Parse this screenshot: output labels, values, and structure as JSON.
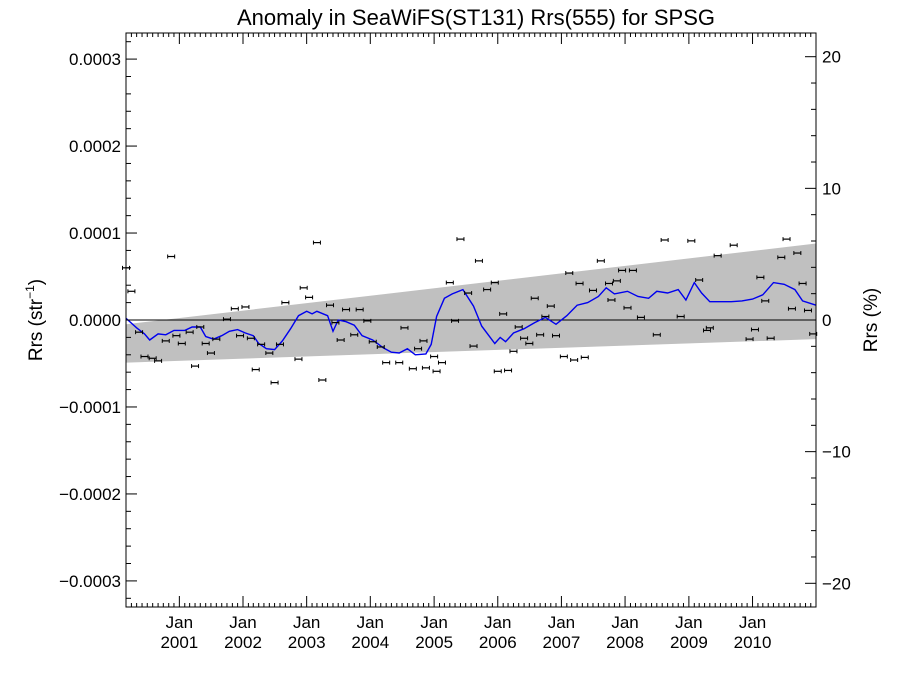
{
  "chart_data": {
    "type": "scatter",
    "title": "Anomaly in SeaWiFS(ST131) Rrs(555) for SPSG",
    "ylabel_left": {
      "text": "Rrs (str",
      "superscript": "−1",
      "suffix": ")"
    },
    "ylabel_right": "Rrs (%)",
    "xlabel": "",
    "xlim": [
      "2000-03-01",
      "2010-12-31"
    ],
    "ylim": [
      -0.00033,
      0.00033
    ],
    "y2lim": [
      -21.8,
      21.8
    ],
    "yticks": [
      {
        "value": 0.0003,
        "label": "0.0003"
      },
      {
        "value": 0.0002,
        "label": "0.0002"
      },
      {
        "value": 0.0001,
        "label": "0.0001"
      },
      {
        "value": 0.0,
        "label": "0.0000"
      },
      {
        "value": -0.0001,
        "label": "−0.0001"
      },
      {
        "value": -0.0002,
        "label": "−0.0002"
      },
      {
        "value": -0.0003,
        "label": "−0.0003"
      }
    ],
    "y2ticks": [
      {
        "value": 20,
        "label": "20"
      },
      {
        "value": 10,
        "label": "10"
      },
      {
        "value": 0,
        "label": "0"
      },
      {
        "value": -10,
        "label": "−10"
      },
      {
        "value": -20,
        "label": "−20"
      }
    ],
    "xticks": [
      {
        "date": "2001-01-01",
        "month": "Jan",
        "year": "2001"
      },
      {
        "date": "2002-01-01",
        "month": "Jan",
        "year": "2002"
      },
      {
        "date": "2003-01-01",
        "month": "Jan",
        "year": "2003"
      },
      {
        "date": "2004-01-01",
        "month": "Jan",
        "year": "2004"
      },
      {
        "date": "2005-01-01",
        "month": "Jan",
        "year": "2005"
      },
      {
        "date": "2006-01-01",
        "month": "Jan",
        "year": "2006"
      },
      {
        "date": "2007-01-01",
        "month": "Jan",
        "year": "2007"
      },
      {
        "date": "2008-01-01",
        "month": "Jan",
        "year": "2008"
      },
      {
        "date": "2009-01-01",
        "month": "Jan",
        "year": "2009"
      },
      {
        "date": "2010-01-01",
        "month": "Jan",
        "year": "2010"
      }
    ],
    "band": {
      "color": "#c0c0c0",
      "upper": [
        [
          "2000-03-01",
          -5e-06
        ],
        [
          "2010-12-31",
          8.8e-05
        ]
      ],
      "lower": [
        [
          "2000-03-01",
          -4.9e-05
        ],
        [
          "2010-12-31",
          -2.2e-05
        ]
      ]
    },
    "zero_line": 0,
    "smooth_line": {
      "color": "#0000ee",
      "points": [
        [
          "2000-03-01",
          2e-06
        ],
        [
          "2000-05-01",
          -9e-06
        ],
        [
          "2000-06-15",
          -1.6e-05
        ],
        [
          "2000-07-15",
          -2.3e-05
        ],
        [
          "2000-09-01",
          -1.6e-05
        ],
        [
          "2000-10-15",
          -1.7e-05
        ],
        [
          "2000-12-01",
          -1.2e-05
        ],
        [
          "2001-02-01",
          -1.2e-05
        ],
        [
          "2001-03-15",
          -8e-06
        ],
        [
          "2001-05-01",
          -8e-06
        ],
        [
          "2001-06-01",
          -1.9e-05
        ],
        [
          "2001-07-15",
          -2.2e-05
        ],
        [
          "2001-09-01",
          -1.8e-05
        ],
        [
          "2001-10-15",
          -1.3e-05
        ],
        [
          "2001-12-01",
          -1.1e-05
        ],
        [
          "2002-01-15",
          -1.5e-05
        ],
        [
          "2002-03-01",
          -1.8e-05
        ],
        [
          "2002-04-01",
          -2.7e-05
        ],
        [
          "2002-05-15",
          -3.3e-05
        ],
        [
          "2002-07-01",
          -3.4e-05
        ],
        [
          "2002-08-15",
          -2.4e-05
        ],
        [
          "2002-10-01",
          -1e-05
        ],
        [
          "2002-11-15",
          5e-06
        ],
        [
          "2003-01-01",
          1e-05
        ],
        [
          "2003-02-01",
          7e-06
        ],
        [
          "2003-03-01",
          1e-05
        ],
        [
          "2003-05-01",
          5e-06
        ],
        [
          "2003-06-01",
          -1.3e-05
        ],
        [
          "2003-07-01",
          0.0
        ],
        [
          "2003-08-15",
          -2e-06
        ],
        [
          "2003-10-01",
          -6e-06
        ],
        [
          "2003-11-15",
          -1.8e-05
        ],
        [
          "2004-01-15",
          -2.3e-05
        ],
        [
          "2004-03-15",
          -3.2e-05
        ],
        [
          "2004-05-01",
          -3.7e-05
        ],
        [
          "2004-06-15",
          -3.8e-05
        ],
        [
          "2004-08-01",
          -3.3e-05
        ],
        [
          "2004-09-15",
          -4e-05
        ],
        [
          "2004-11-15",
          -3.9e-05
        ],
        [
          "2004-12-15",
          -2.8e-05
        ],
        [
          "2005-01-15",
          4e-06
        ],
        [
          "2005-03-01",
          2.5e-05
        ],
        [
          "2005-04-15",
          3e-05
        ],
        [
          "2005-06-15",
          3.5e-05
        ],
        [
          "2005-08-15",
          1.6e-05
        ],
        [
          "2005-10-01",
          -7e-06
        ],
        [
          "2005-12-15",
          -2.7e-05
        ],
        [
          "2006-01-15",
          -2e-05
        ],
        [
          "2006-02-15",
          -2.5e-05
        ],
        [
          "2006-04-01",
          -1.5e-05
        ],
        [
          "2006-06-01",
          -1e-05
        ],
        [
          "2006-08-01",
          -3e-06
        ],
        [
          "2006-10-01",
          3e-06
        ],
        [
          "2006-12-01",
          -5e-06
        ],
        [
          "2007-02-01",
          5e-06
        ],
        [
          "2007-04-01",
          1.7e-05
        ],
        [
          "2007-06-01",
          2e-05
        ],
        [
          "2007-08-01",
          2.7e-05
        ],
        [
          "2007-09-15",
          3.7e-05
        ],
        [
          "2007-11-01",
          3e-05
        ],
        [
          "2008-01-15",
          3.3e-05
        ],
        [
          "2008-03-15",
          2.7e-05
        ],
        [
          "2008-05-15",
          2.5e-05
        ],
        [
          "2008-07-01",
          3.3e-05
        ],
        [
          "2008-09-01",
          3.1e-05
        ],
        [
          "2008-11-01",
          3.5e-05
        ],
        [
          "2008-12-15",
          2.3e-05
        ],
        [
          "2009-02-01",
          4.3e-05
        ],
        [
          "2009-03-15",
          3.1e-05
        ],
        [
          "2009-05-01",
          2.1e-05
        ],
        [
          "2009-07-01",
          2.1e-05
        ],
        [
          "2009-09-01",
          2.1e-05
        ],
        [
          "2009-11-01",
          2.2e-05
        ],
        [
          "2010-01-01",
          2.4e-05
        ],
        [
          "2010-03-01",
          2.9e-05
        ],
        [
          "2010-05-01",
          4.3e-05
        ],
        [
          "2010-07-01",
          4.1e-05
        ],
        [
          "2010-09-01",
          3.5e-05
        ],
        [
          "2010-10-15",
          2.2e-05
        ],
        [
          "2010-12-31",
          1.7e-05
        ]
      ]
    },
    "points": {
      "color": "#000000",
      "marker": "short horizontal error bar",
      "values": [
        [
          "2000-03-01",
          6e-05
        ],
        [
          "2000-04-01",
          3.3e-05
        ],
        [
          "2000-05-15",
          -1.4e-05
        ],
        [
          "2000-06-15",
          -4.2e-05
        ],
        [
          "2000-08-01",
          -4.4e-05
        ],
        [
          "2000-09-01",
          -4.7e-05
        ],
        [
          "2000-10-15",
          -2.4e-05
        ],
        [
          "2000-11-15",
          7.3e-05
        ],
        [
          "2000-12-15",
          -1.8e-05
        ],
        [
          "2001-01-15",
          -2.7e-05
        ],
        [
          "2001-03-01",
          -1.4e-05
        ],
        [
          "2001-04-01",
          -5.3e-05
        ],
        [
          "2001-05-01",
          -8e-06
        ],
        [
          "2001-06-01",
          -2.7e-05
        ],
        [
          "2001-07-01",
          -3.8e-05
        ],
        [
          "2001-08-01",
          -2.2e-05
        ],
        [
          "2001-10-01",
          1e-06
        ],
        [
          "2001-11-15",
          1.3e-05
        ],
        [
          "2001-12-15",
          -1.8e-05
        ],
        [
          "2002-01-15",
          1.5e-05
        ],
        [
          "2002-02-15",
          -2.1e-05
        ],
        [
          "2002-03-15",
          -5.7e-05
        ],
        [
          "2002-04-15",
          -2.8e-05
        ],
        [
          "2002-06-01",
          -3.8e-05
        ],
        [
          "2002-07-01",
          -7.2e-05
        ],
        [
          "2002-08-01",
          -2.8e-05
        ],
        [
          "2002-09-01",
          2e-05
        ],
        [
          "2002-11-15",
          -4.5e-05
        ],
        [
          "2002-12-15",
          3.7e-05
        ],
        [
          "2003-01-15",
          2.6e-05
        ],
        [
          "2003-03-01",
          8.9e-05
        ],
        [
          "2003-04-01",
          -6.9e-05
        ],
        [
          "2003-05-15",
          1.7e-05
        ],
        [
          "2003-06-15",
          -3e-06
        ],
        [
          "2003-07-15",
          -2.3e-05
        ],
        [
          "2003-08-15",
          1.2e-05
        ],
        [
          "2003-10-01",
          -1.7e-05
        ],
        [
          "2003-11-01",
          1.2e-05
        ],
        [
          "2003-12-15",
          -1e-06
        ],
        [
          "2004-01-15",
          -2.5e-05
        ],
        [
          "2004-03-01",
          -3.1e-05
        ],
        [
          "2004-04-01",
          -4.9e-05
        ],
        [
          "2004-06-15",
          -4.9e-05
        ],
        [
          "2004-07-15",
          -9e-06
        ],
        [
          "2004-09-01",
          -5.6e-05
        ],
        [
          "2004-10-01",
          -3.3e-05
        ],
        [
          "2004-11-01",
          -2.4e-05
        ],
        [
          "2004-11-15",
          -5.5e-05
        ],
        [
          "2005-01-01",
          -4.2e-05
        ],
        [
          "2005-01-15",
          -5.9e-05
        ],
        [
          "2005-02-15",
          -4.9e-05
        ],
        [
          "2005-04-01",
          4.3e-05
        ],
        [
          "2005-05-01",
          -1e-06
        ],
        [
          "2005-06-01",
          9.3e-05
        ],
        [
          "2005-07-15",
          3.1e-05
        ],
        [
          "2005-08-15",
          -3e-05
        ],
        [
          "2005-09-15",
          6.8e-05
        ],
        [
          "2005-11-01",
          3.5e-05
        ],
        [
          "2005-12-15",
          4.3e-05
        ],
        [
          "2006-01-01",
          -5.9e-05
        ],
        [
          "2006-02-01",
          7e-06
        ],
        [
          "2006-03-01",
          -5.8e-05
        ],
        [
          "2006-04-01",
          -3.6e-05
        ],
        [
          "2006-05-01",
          -8e-06
        ],
        [
          "2006-06-01",
          -2.1e-05
        ],
        [
          "2006-07-01",
          -2.7e-05
        ],
        [
          "2006-08-01",
          2.5e-05
        ],
        [
          "2006-09-01",
          -1.7e-05
        ],
        [
          "2006-10-01",
          4e-06
        ],
        [
          "2006-11-01",
          1.6e-05
        ],
        [
          "2006-12-01",
          -1.8e-05
        ],
        [
          "2007-01-15",
          -4.2e-05
        ],
        [
          "2007-02-15",
          5.4e-05
        ],
        [
          "2007-03-15",
          -4.6e-05
        ],
        [
          "2007-04-15",
          4.2e-05
        ],
        [
          "2007-05-15",
          -4.3e-05
        ],
        [
          "2007-07-01",
          3.4e-05
        ],
        [
          "2007-08-15",
          6.8e-05
        ],
        [
          "2007-10-01",
          4.2e-05
        ],
        [
          "2007-10-15",
          2.3e-05
        ],
        [
          "2007-11-15",
          4.5e-05
        ],
        [
          "2007-12-15",
          5.7e-05
        ],
        [
          "2008-01-15",
          1.4e-05
        ],
        [
          "2008-02-15",
          5.7e-05
        ],
        [
          "2008-04-01",
          3e-06
        ],
        [
          "2008-07-01",
          -1.7e-05
        ],
        [
          "2008-08-15",
          9.2e-05
        ],
        [
          "2008-11-15",
          4e-06
        ],
        [
          "2009-01-15",
          9.1e-05
        ],
        [
          "2009-03-01",
          4.6e-05
        ],
        [
          "2009-04-15",
          -1.2e-05
        ],
        [
          "2009-05-01",
          -9e-06
        ],
        [
          "2009-06-15",
          7.4e-05
        ],
        [
          "2009-09-15",
          8.6e-05
        ],
        [
          "2009-12-15",
          -2.2e-05
        ],
        [
          "2010-01-15",
          -1.1e-05
        ],
        [
          "2010-02-15",
          4.9e-05
        ],
        [
          "2010-03-15",
          2.2e-05
        ],
        [
          "2010-04-15",
          -2.1e-05
        ],
        [
          "2010-06-15",
          7.2e-05
        ],
        [
          "2010-07-15",
          9.3e-05
        ],
        [
          "2010-08-15",
          1.3e-05
        ],
        [
          "2010-09-15",
          7.7e-05
        ],
        [
          "2010-10-15",
          4.2e-05
        ],
        [
          "2010-11-15",
          1.1e-05
        ],
        [
          "2010-12-15",
          -1.6e-05
        ]
      ]
    }
  }
}
